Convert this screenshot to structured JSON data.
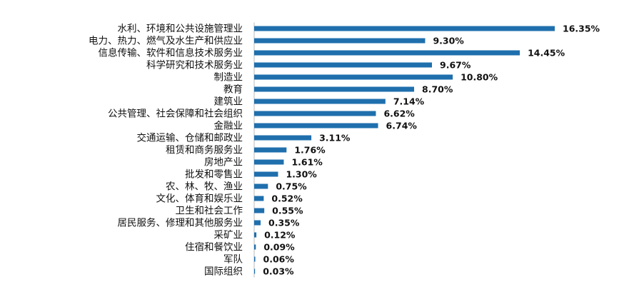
{
  "chart_data": {
    "type": "bar",
    "orientation": "horizontal",
    "title": "",
    "xlabel": "",
    "ylabel": "",
    "grid": false,
    "legend": "none",
    "bar_color": "#1f6fad",
    "value_suffix": "%",
    "categories": [
      "水利、环境和公共设施管理业",
      "电力、热力、燃气及水生产和供应业",
      "信息传输、软件和信息技术服务业",
      "科学研究和技术服务业",
      "制造业",
      "教育",
      "建筑业",
      "公共管理、社会保障和社会组织",
      "金融业",
      "交通运输、仓储和邮政业",
      "租赁和商务服务业",
      "房地产业",
      "批发和零售业",
      "农、林、牧、渔业",
      "文化、体育和娱乐业",
      "卫生和社会工作",
      "居民服务、修理和其他服务业",
      "采矿业",
      "住宿和餐饮业",
      "军队",
      "国际组织"
    ],
    "values": [
      16.35,
      9.3,
      14.45,
      9.67,
      10.8,
      8.7,
      7.14,
      6.62,
      6.74,
      3.11,
      1.76,
      1.61,
      1.3,
      0.75,
      0.52,
      0.55,
      0.35,
      0.12,
      0.09,
      0.06,
      0.03
    ],
    "value_labels": [
      "16.35%",
      "9.30%",
      "14.45%",
      "9.67%",
      "10.80%",
      "8.70%",
      "7.14%",
      "6.62%",
      "6.74%",
      "3.11%",
      "1.76%",
      "1.61%",
      "1.30%",
      "0.75%",
      "0.52%",
      "0.55%",
      "0.35%",
      "0.12%",
      "0.09%",
      "0.06%",
      "0.03%"
    ]
  }
}
